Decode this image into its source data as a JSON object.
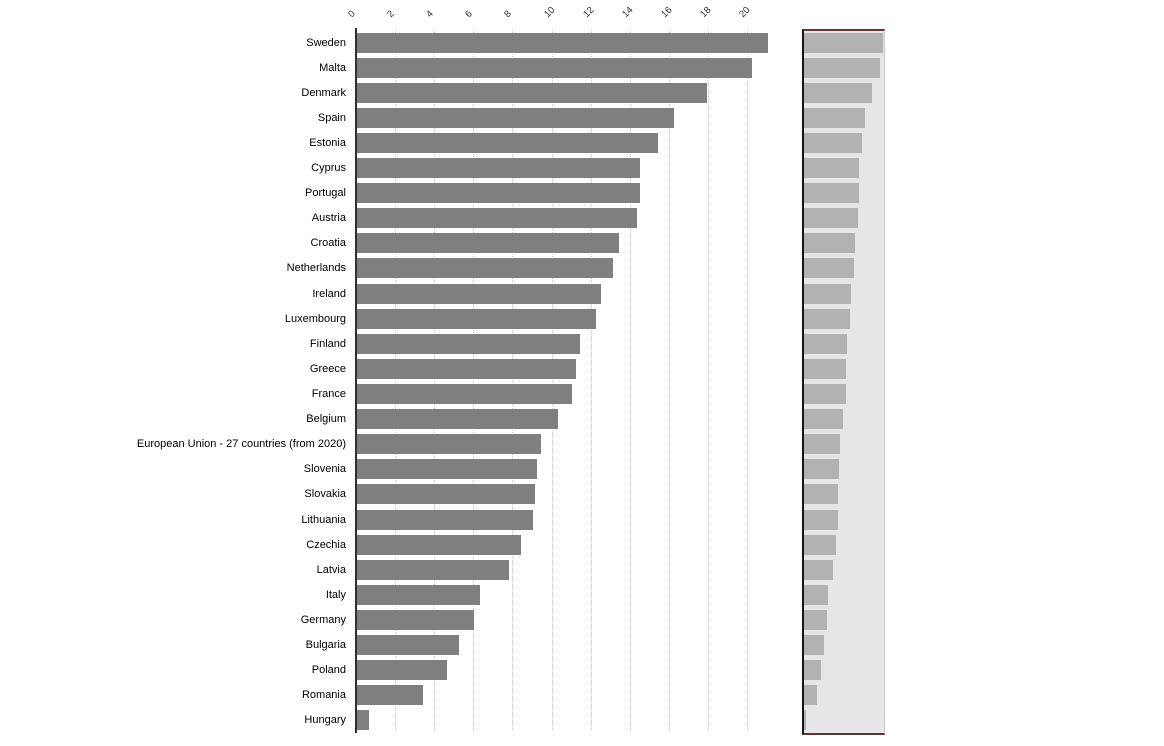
{
  "chart_data": {
    "type": "bar",
    "orientation": "horizontal",
    "title": "",
    "xlabel": "",
    "ylabel": "",
    "categories": [
      "Sweden",
      "Malta",
      "Denmark",
      "Spain",
      "Estonia",
      "Cyprus",
      "Portugal",
      "Austria",
      "Croatia",
      "Netherlands",
      "Ireland",
      "Luxembourg",
      "Finland",
      "Greece",
      "France",
      "Belgium",
      "European Union - 27 countries (from 2020)",
      "Slovenia",
      "Slovakia",
      "Lithuania",
      "Czechia",
      "Latvia",
      "Italy",
      "Germany",
      "Bulgaria",
      "Poland",
      "Romania",
      "Hungary"
    ],
    "values": [
      21.0,
      20.2,
      17.9,
      16.2,
      15.4,
      14.5,
      14.5,
      14.3,
      13.4,
      13.1,
      12.5,
      12.2,
      11.4,
      11.2,
      11.0,
      10.3,
      9.4,
      9.2,
      9.1,
      9.0,
      8.4,
      7.8,
      6.3,
      6.0,
      5.2,
      4.6,
      3.4,
      0.6
    ],
    "axis_ticks": [
      0,
      2,
      4,
      6,
      8,
      10,
      12,
      14,
      16,
      18,
      20
    ],
    "xlim": [
      0,
      21.2
    ],
    "grid": "dotted-vertical",
    "legend": "none",
    "colors": {
      "bar": "#7f7f7f",
      "gridline": "#c9c9c9",
      "axis_line": "#2f2f2f",
      "tick_text": "#2e2e2e",
      "label_text": "#000000",
      "background": "#ffffff"
    }
  },
  "minimap": {
    "description": "thumbnail-preview-of-same-chart",
    "colors": {
      "background": "#e6e6e6",
      "bar": "#b2b2b2",
      "border_top": "#6e3335",
      "border_bottom": "#5d3434",
      "border_left": "#161616",
      "border_right": "#c8c8c8"
    }
  }
}
